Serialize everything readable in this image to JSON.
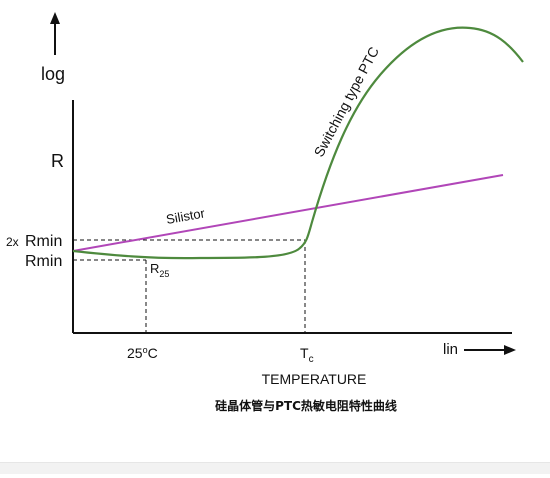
{
  "chart_data": {
    "type": "line",
    "y_axis_label_top": "log",
    "y_axis_label_r": "R",
    "y_tick_2x_prefix": "2x",
    "y_tick_2x_rmin": "Rmin",
    "y_tick_rmin": "Rmin",
    "r25_main": "R",
    "r25_sub": "25",
    "x_tick_25c_prefix": "25",
    "x_tick_25c_super": "o",
    "x_tick_25c_suffix": "C",
    "x_tick_tc_main": "T",
    "x_tick_tc_sub": "c",
    "x_axis_lin": "lin",
    "x_axis_title": "TEMPERATURE",
    "caption": "硅晶体管与PTC热敏电阻特性曲线",
    "series": [
      {
        "name": "Silistor",
        "color": "#b146b8",
        "shape": "straight rising line"
      },
      {
        "name": "Switching type PTC",
        "color": "#4e8a3e",
        "shape": "flat near Rmin until Tc, then sharp rise and fall"
      }
    ]
  }
}
